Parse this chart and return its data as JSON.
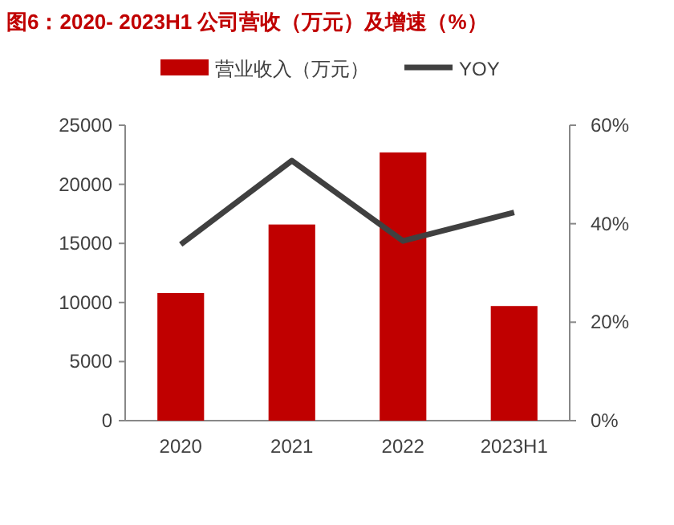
{
  "chart_data": {
    "type": "bar",
    "title": "图6：2020- 2023H1 公司营收（万元）及增速（%）",
    "categories": [
      "2020",
      "2021",
      "2022",
      "2023H1"
    ],
    "series": [
      {
        "name": "营业收入（万元）",
        "color": "#c00000",
        "values": [
          10800,
          16600,
          22700,
          9700
        ]
      },
      {
        "name": "YOY",
        "type": "line",
        "axis": "y2",
        "color": "#404040",
        "values": [
          35.8,
          52.8,
          36.5,
          42.3
        ]
      }
    ],
    "ylim": [
      0,
      25000
    ],
    "yticks": [
      0,
      5000,
      10000,
      15000,
      20000,
      25000
    ],
    "y2lim": [
      0,
      60
    ],
    "y2ticks": [
      {
        "value": 0,
        "label": "0%"
      },
      {
        "value": 20,
        "label": "20%"
      },
      {
        "value": 40,
        "label": "40%"
      },
      {
        "value": 60,
        "label": "60%"
      }
    ],
    "legend": "top",
    "grid": false
  }
}
